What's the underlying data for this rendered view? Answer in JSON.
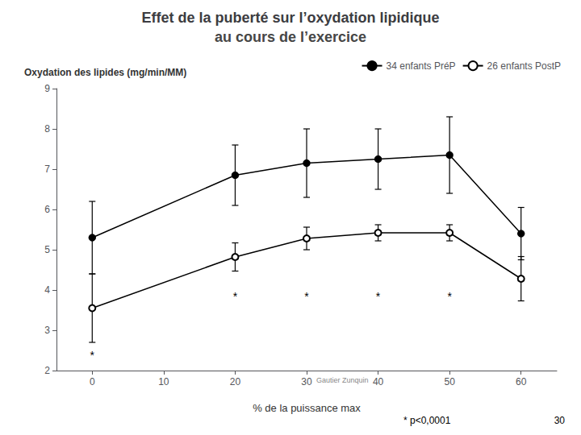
{
  "chart_data": {
    "type": "line",
    "title": "Effet de la puberté sur l’oxydation lipidique",
    "subtitle": "au cours de l’exercice",
    "xlabel": "% de la puissance max",
    "ylabel": "Oxydation des lipides (mg/min/MM)",
    "x": [
      0,
      20,
      30,
      40,
      50,
      60
    ],
    "series": [
      {
        "name": "34 enfants PréP",
        "color": "#000000",
        "marker": "circle",
        "line_style": "solid",
        "values": [
          5.3,
          6.85,
          7.15,
          7.25,
          7.35,
          5.4
        ],
        "errors": [
          0.9,
          0.75,
          0.85,
          0.75,
          0.95,
          0.65
        ]
      },
      {
        "name": "26 enfants PostP",
        "color": "#000000",
        "marker": "emptyCircle",
        "line_style": "solid",
        "values": [
          3.55,
          4.82,
          5.28,
          5.42,
          5.42,
          4.28
        ],
        "errors": [
          0.85,
          0.35,
          0.28,
          0.2,
          0.2,
          0.55
        ]
      }
    ],
    "xlim": [
      -5,
      65
    ],
    "ylim": [
      2,
      9
    ],
    "xticks": [
      0,
      10,
      20,
      30,
      40,
      50,
      60
    ],
    "yticks": [
      2,
      3,
      4,
      5,
      6,
      7,
      8,
      9
    ],
    "grid": false,
    "legend": "upper right",
    "annotations": [
      {
        "text": "*",
        "x": 0,
        "y": 2.38
      },
      {
        "text": "*",
        "x": 20,
        "y": 3.85
      },
      {
        "text": "*",
        "x": 30,
        "y": 3.85
      },
      {
        "text": "*",
        "x": 40,
        "y": 3.85
      },
      {
        "text": "*",
        "x": 50,
        "y": 3.85
      },
      {
        "text": "Gautier Zunquin",
        "x": 35,
        "y": 1.85
      }
    ],
    "footnote": "* p<0,0001",
    "page_number": "30"
  }
}
